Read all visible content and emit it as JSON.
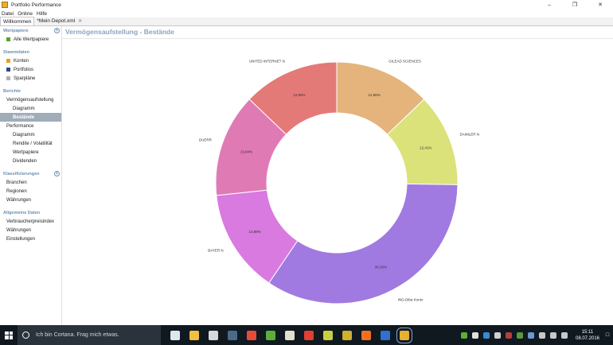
{
  "window": {
    "title": "Portfolio Performance"
  },
  "menu": [
    "Datei",
    "Online",
    "Hilfe"
  ],
  "tabs": [
    {
      "label": "Willkommen",
      "active": true
    },
    {
      "label": "*Mein Depot.xml",
      "active": false
    }
  ],
  "sidebar": {
    "wertpapiere": {
      "header": "Wertpapiere",
      "items": [
        {
          "label": "Alle Wertpapiere",
          "color": "#5aa02c"
        }
      ]
    },
    "stammdaten": {
      "header": "Stammdaten",
      "items": [
        {
          "label": "Konten",
          "color": "#e8a020"
        },
        {
          "label": "Portfolios",
          "color": "#2a4a8a"
        },
        {
          "label": "Sparpläne",
          "color": "#b0b0b0"
        }
      ]
    },
    "berichte": {
      "header": "Berichte",
      "items": [
        {
          "label": "Vermögensaufstellung",
          "level": 1
        },
        {
          "label": "Diagramm",
          "level": 2
        },
        {
          "label": "Bestände",
          "level": 2,
          "active": true
        },
        {
          "label": "Performance",
          "level": 1
        },
        {
          "label": "Diagramm",
          "level": 2
        },
        {
          "label": "Rendite / Volatilität",
          "level": 2
        },
        {
          "label": "Wertpapiere",
          "level": 2
        },
        {
          "label": "Dividenden",
          "level": 2
        }
      ]
    },
    "klassifizierungen": {
      "header": "Klassifizierungen",
      "items": [
        {
          "label": "Branchen"
        },
        {
          "label": "Regionen"
        },
        {
          "label": "Währungen"
        }
      ]
    },
    "allgemein": {
      "header": "Allgemeine Daten",
      "items": [
        {
          "label": "Verbraucherpreisindex"
        },
        {
          "label": "Währungen"
        },
        {
          "label": "Einstellungen"
        }
      ]
    }
  },
  "main": {
    "title": "Vermögensaufstellung - Bestände"
  },
  "chart_data": {
    "type": "pie",
    "donut": true,
    "slices": [
      {
        "label": "GILEAD SCIENCES",
        "value": 12.86,
        "value_label": "12,86%",
        "color": "#e4b47c"
      },
      {
        "label": "DAIMLER N",
        "value": 12.41,
        "value_label": "12,41%",
        "color": "#dbe27a"
      },
      {
        "label": "ING-Diba Konto",
        "value": 34.26,
        "value_label": "34,26%",
        "color": "#a07ae0"
      },
      {
        "label": "BAYER N",
        "value": 13.88,
        "value_label": "13,88%",
        "color": "#d87ae0"
      },
      {
        "label": "DUERR",
        "value": 13.84,
        "value_label": "13,84%",
        "color": "#e07ab4"
      },
      {
        "label": "UNITED INTERNET N",
        "value": 12.85,
        "value_label": "12,85%",
        "color": "#e47a78"
      }
    ]
  },
  "taskbar": {
    "search_placeholder": "Ich bin Cortana. Frag mich etwas.",
    "time": "15:11",
    "date": "08.07.2016",
    "apps": [
      {
        "name": "task-view-icon",
        "color": "#dfe6ee"
      },
      {
        "name": "file-explorer-icon",
        "color": "#f0c040"
      },
      {
        "name": "calculator-icon",
        "color": "#d8d8d8"
      },
      {
        "name": "steam-icon",
        "color": "#4a6a8a"
      },
      {
        "name": "chrome-icon",
        "color": "#e84a3a"
      },
      {
        "name": "app-green-icon",
        "color": "#5ab03a"
      },
      {
        "name": "app-cow-icon",
        "color": "#e0e0d0"
      },
      {
        "name": "app-red-icon",
        "color": "#e04030"
      },
      {
        "name": "app-yellow-icon",
        "color": "#c8d040"
      },
      {
        "name": "app-photo-icon",
        "color": "#d0b030"
      },
      {
        "name": "download-icon",
        "color": "#f07020"
      },
      {
        "name": "app-blue-icon",
        "color": "#3070d0"
      },
      {
        "name": "portfolio-performance-icon",
        "color": "#e8b030",
        "active": true
      }
    ]
  }
}
